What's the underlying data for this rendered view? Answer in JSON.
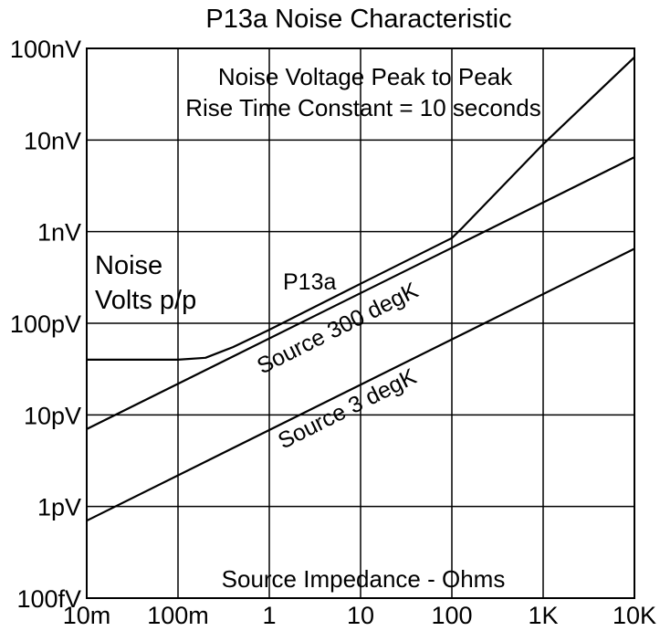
{
  "chart_data": {
    "type": "line",
    "title": "P13a Noise Characteristic",
    "xscale": "log",
    "yscale": "log",
    "xlim": [
      0.01,
      10000
    ],
    "ylim": [
      1e-13,
      1e-07
    ],
    "grid": true,
    "x_ticks": [
      {
        "value": 0.01,
        "label": "10m"
      },
      {
        "value": 0.1,
        "label": "100m"
      },
      {
        "value": 1,
        "label": "1"
      },
      {
        "value": 10,
        "label": "10"
      },
      {
        "value": 100,
        "label": "100"
      },
      {
        "value": 1000,
        "label": "1K"
      },
      {
        "value": 10000,
        "label": "10K"
      }
    ],
    "y_ticks": [
      {
        "value": 1e-13,
        "label": "100fV"
      },
      {
        "value": 1e-12,
        "label": "1pV"
      },
      {
        "value": 1e-11,
        "label": "10pV"
      },
      {
        "value": 1e-10,
        "label": "100pV"
      },
      {
        "value": 1e-09,
        "label": "1nV"
      },
      {
        "value": 1e-08,
        "label": "10nV"
      },
      {
        "value": 1e-07,
        "label": "100nV"
      }
    ],
    "annotations": {
      "subtitle_line1": "Noise Voltage Peak to Peak",
      "subtitle_line2": "Rise Time Constant = 10 seconds",
      "ylabel_line1": "Noise",
      "ylabel_line2": "Volts p/p",
      "xlabel": "Source Impedance - Ohms"
    },
    "series": [
      {
        "name": "P13a",
        "x": [
          0.01,
          0.1,
          0.2,
          0.4,
          1,
          10,
          100,
          130,
          1000,
          10000
        ],
        "y": [
          4e-11,
          4e-11,
          4.2e-11,
          5.5e-11,
          8.5e-11,
          2.7e-10,
          8.5e-10,
          1.1e-09,
          9e-09,
          8e-08
        ]
      },
      {
        "name": "Source 300 degK",
        "x": [
          0.01,
          10000
        ],
        "y": [
          7e-12,
          6.5e-09
        ]
      },
      {
        "name": "Source 3 degK",
        "x": [
          0.01,
          10000
        ],
        "y": [
          7e-13,
          6.5e-10
        ]
      }
    ]
  }
}
